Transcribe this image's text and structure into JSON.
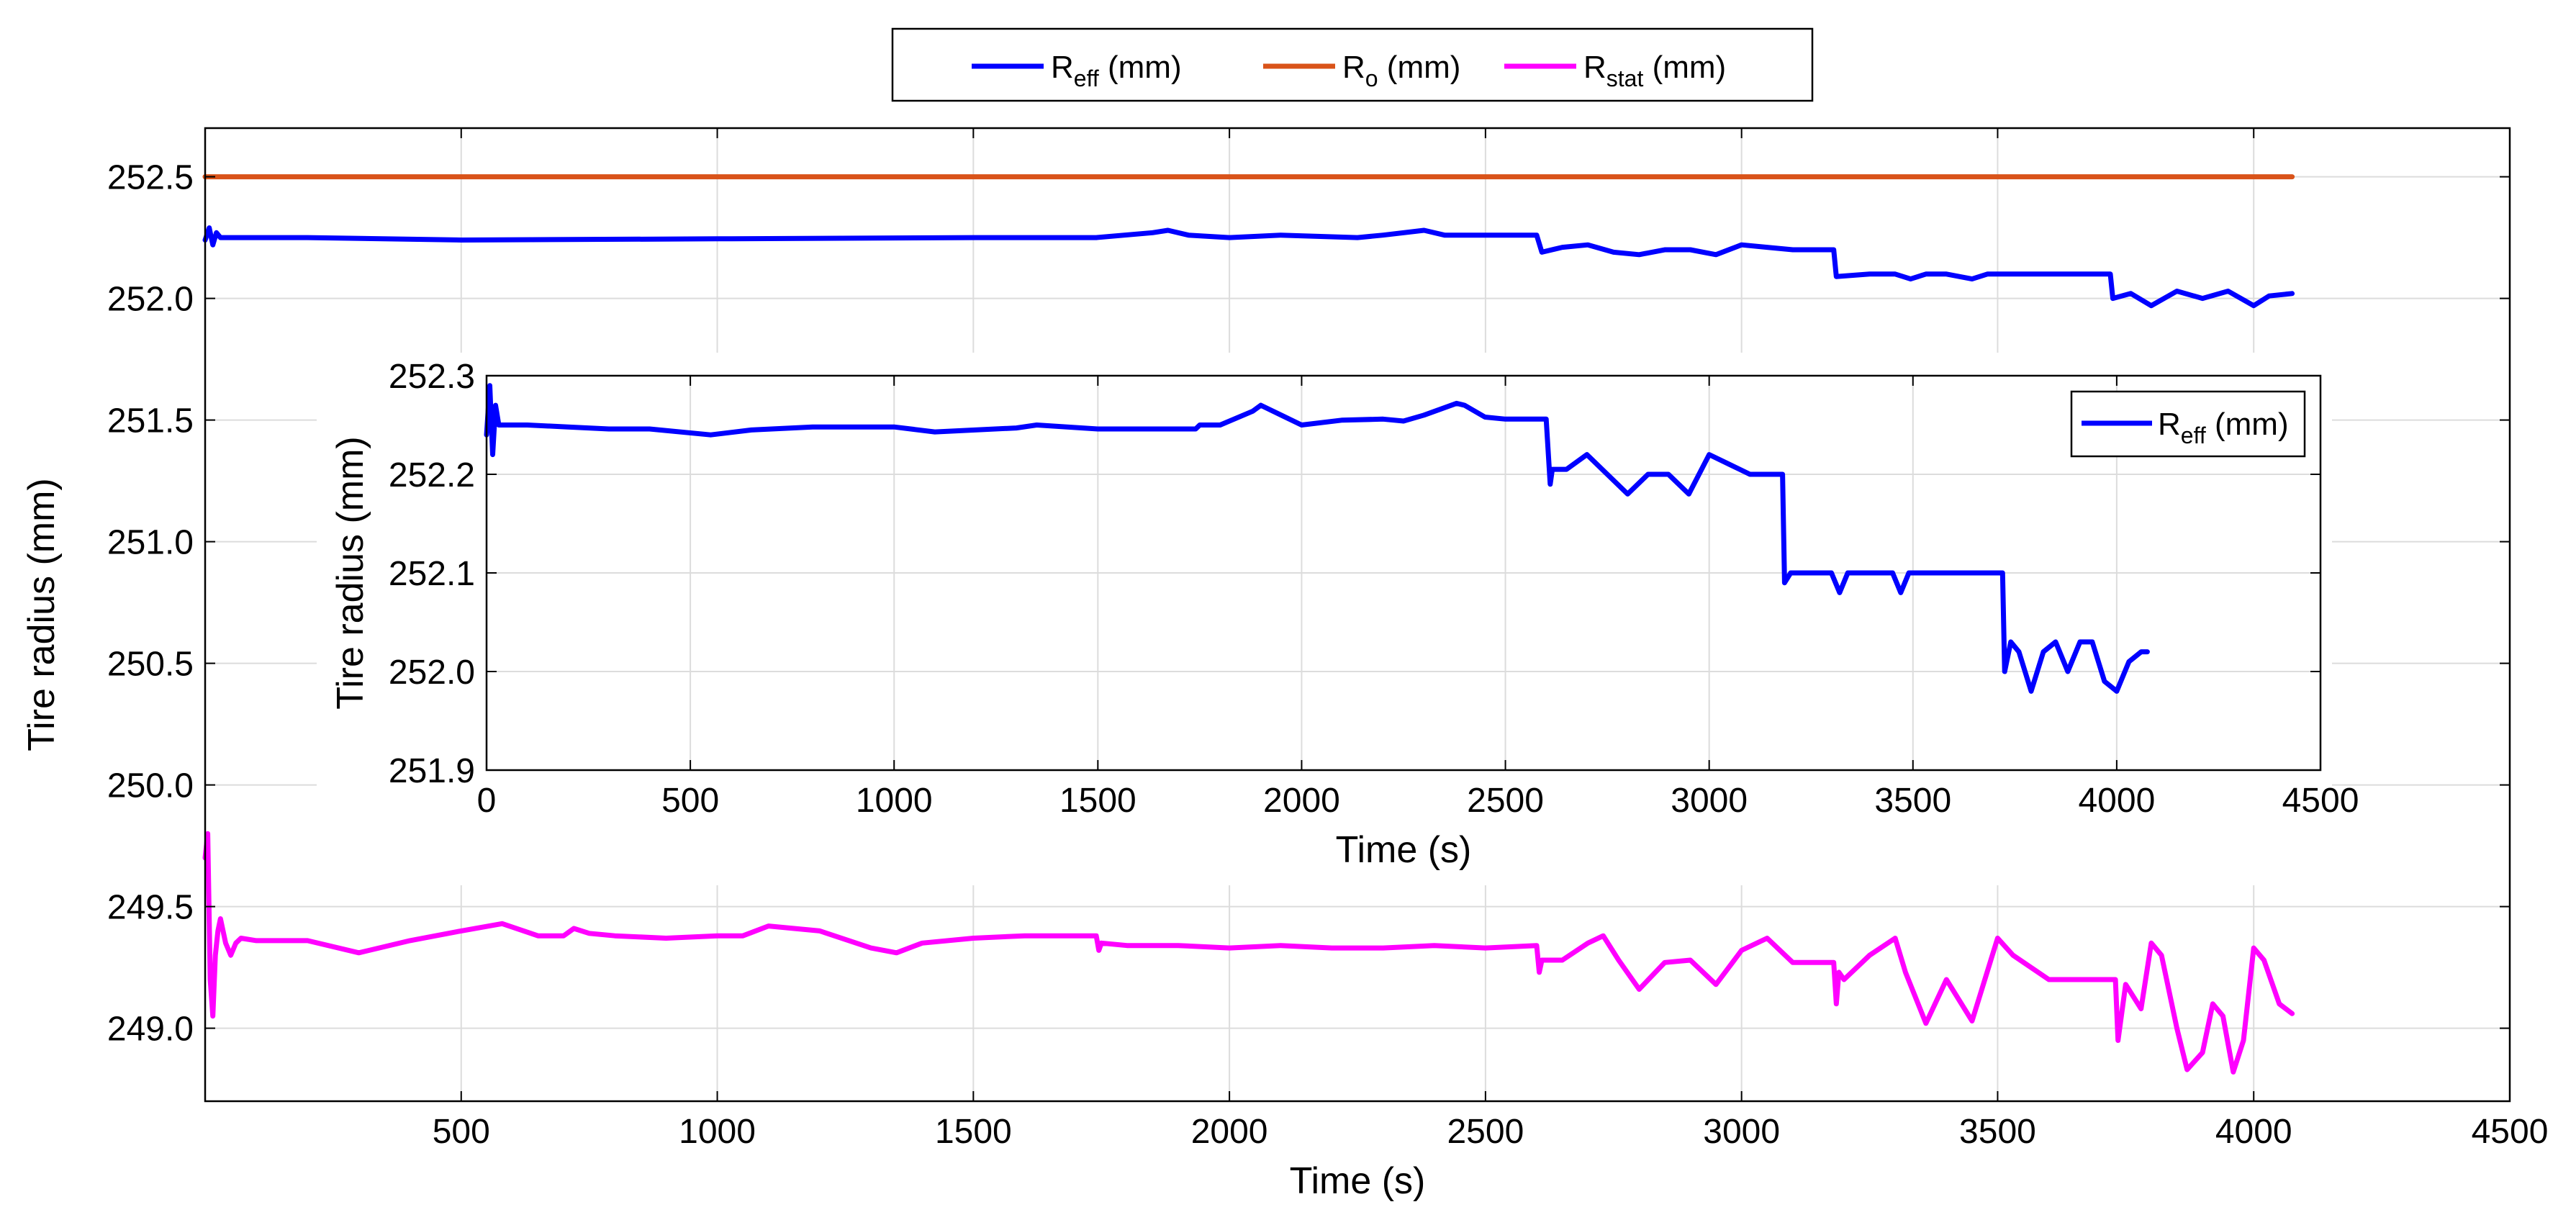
{
  "chart_data": [
    {
      "type": "line",
      "xlabel": "Time (s)",
      "ylabel": "Tire radius (mm)",
      "xlim": [
        0,
        4500
      ],
      "ylim": [
        248.7,
        252.7
      ],
      "xticks": [
        500,
        1000,
        1500,
        2000,
        2500,
        3000,
        3500,
        4000,
        4500
      ],
      "yticks": [
        249.0,
        249.5,
        250.0,
        250.5,
        251.0,
        251.5,
        252.0,
        252.5
      ],
      "ytick_labels": [
        "249.0",
        "249.5",
        "250.0",
        "250.5",
        "251.0",
        "251.5",
        "252.0",
        "252.5"
      ],
      "grid": true,
      "legend": {
        "placement": "top-center-outside",
        "orientation": "horizontal"
      },
      "series": [
        {
          "name": "R_eff (mm)",
          "legend_main": "R",
          "legend_sub": "eff",
          "legend_unit": " (mm)",
          "color": "#0000FF",
          "x": [
            0,
            8,
            15,
            22,
            30,
            40,
            60,
            200,
            500,
            1000,
            1500,
            1740,
            1850,
            1880,
            1920,
            2000,
            2100,
            2250,
            2300,
            2380,
            2420,
            2600,
            2610,
            2650,
            2700,
            2750,
            2800,
            2850,
            2900,
            2950,
            3000,
            3050,
            3100,
            3180,
            3185,
            3250,
            3300,
            3330,
            3360,
            3400,
            3450,
            3480,
            3500,
            3720,
            3725,
            3760,
            3800,
            3850,
            3900,
            3950,
            4000,
            4030,
            4075
          ],
          "y": [
            252.24,
            252.29,
            252.22,
            252.27,
            252.25,
            252.25,
            252.25,
            252.25,
            252.24,
            252.245,
            252.25,
            252.25,
            252.27,
            252.28,
            252.26,
            252.25,
            252.26,
            252.25,
            252.26,
            252.28,
            252.26,
            252.26,
            252.19,
            252.21,
            252.22,
            252.19,
            252.18,
            252.2,
            252.2,
            252.18,
            252.22,
            252.21,
            252.2,
            252.2,
            252.09,
            252.1,
            252.1,
            252.08,
            252.1,
            252.1,
            252.08,
            252.1,
            252.1,
            252.1,
            252.0,
            252.02,
            251.97,
            252.03,
            252.0,
            252.03,
            251.97,
            252.01,
            252.02
          ]
        },
        {
          "name": "R_o (mm)",
          "legend_main": "R",
          "legend_sub": "o",
          "legend_unit": " (mm)",
          "color": "#D95319",
          "x": [
            0,
            4075
          ],
          "y": [
            252.5,
            252.5
          ]
        },
        {
          "name": "R_stat (mm)",
          "legend_main": "R",
          "legend_sub": "stat",
          "legend_unit": " (mm)",
          "color": "#FF00FF",
          "x": [
            0,
            5,
            10,
            15,
            20,
            25,
            30,
            40,
            50,
            60,
            70,
            100,
            200,
            300,
            400,
            500,
            580,
            650,
            700,
            720,
            750,
            800,
            900,
            1000,
            1050,
            1100,
            1200,
            1300,
            1350,
            1400,
            1500,
            1600,
            1700,
            1740,
            1745,
            1750,
            1800,
            1900,
            2000,
            2100,
            2200,
            2300,
            2400,
            2500,
            2600,
            2605,
            2610,
            2650,
            2700,
            2730,
            2760,
            2800,
            2850,
            2900,
            2950,
            3000,
            3050,
            3100,
            3150,
            3180,
            3185,
            3190,
            3200,
            3250,
            3300,
            3320,
            3360,
            3400,
            3450,
            3500,
            3530,
            3600,
            3700,
            3730,
            3735,
            3750,
            3780,
            3800,
            3820,
            3850,
            3870,
            3900,
            3920,
            3940,
            3960,
            3980,
            4000,
            4020,
            4050,
            4075
          ],
          "y": [
            249.7,
            249.8,
            249.2,
            249.05,
            249.3,
            249.4,
            249.45,
            249.35,
            249.3,
            249.35,
            249.37,
            249.36,
            249.36,
            249.31,
            249.36,
            249.4,
            249.43,
            249.38,
            249.38,
            249.41,
            249.39,
            249.38,
            249.37,
            249.38,
            249.38,
            249.42,
            249.4,
            249.33,
            249.31,
            249.35,
            249.37,
            249.38,
            249.38,
            249.38,
            249.32,
            249.35,
            249.34,
            249.34,
            249.33,
            249.34,
            249.33,
            249.33,
            249.34,
            249.33,
            249.34,
            249.23,
            249.28,
            249.28,
            249.35,
            249.38,
            249.28,
            249.16,
            249.27,
            249.28,
            249.18,
            249.32,
            249.37,
            249.27,
            249.27,
            249.27,
            249.1,
            249.23,
            249.2,
            249.3,
            249.37,
            249.23,
            249.02,
            249.2,
            249.03,
            249.37,
            249.3,
            249.2,
            249.2,
            249.2,
            248.95,
            249.18,
            249.08,
            249.35,
            249.3,
            249.0,
            248.83,
            248.9,
            249.1,
            249.05,
            248.82,
            248.95,
            249.33,
            249.28,
            249.1,
            249.06
          ]
        }
      ]
    },
    {
      "type": "line",
      "role": "inset",
      "xlabel": "Time (s)",
      "ylabel": "Tire radius (mm)",
      "xlim": [
        0,
        4500
      ],
      "ylim": [
        251.9,
        252.3
      ],
      "xticks": [
        0,
        500,
        1000,
        1500,
        2000,
        2500,
        3000,
        3500,
        4000,
        4500
      ],
      "yticks": [
        251.9,
        252.0,
        252.1,
        252.2,
        252.3
      ],
      "ytick_labels": [
        "251.9",
        "252.0",
        "252.1",
        "252.2",
        "252.3"
      ],
      "grid": true,
      "legend": {
        "placement": "top-right"
      },
      "series": [
        {
          "name": "R_eff (mm)",
          "legend_main": "R",
          "legend_sub": "eff",
          "legend_unit": " (mm)",
          "color": "#0000FF",
          "x": [
            0,
            8,
            15,
            22,
            30,
            40,
            60,
            100,
            200,
            300,
            400,
            550,
            650,
            800,
            1000,
            1100,
            1300,
            1350,
            1500,
            1740,
            1750,
            1800,
            1880,
            1900,
            1950,
            2000,
            2100,
            2200,
            2250,
            2300,
            2380,
            2400,
            2450,
            2500,
            2600,
            2610,
            2615,
            2650,
            2700,
            2750,
            2800,
            2850,
            2900,
            2950,
            3000,
            3050,
            3100,
            3150,
            3180,
            3185,
            3200,
            3250,
            3300,
            3320,
            3340,
            3360,
            3400,
            3450,
            3470,
            3490,
            3500,
            3600,
            3720,
            3725,
            3740,
            3760,
            3790,
            3820,
            3850,
            3880,
            3910,
            3940,
            3970,
            4000,
            4030,
            4060,
            4075
          ],
          "y": [
            252.24,
            252.29,
            252.22,
            252.27,
            252.25,
            252.25,
            252.25,
            252.25,
            252.248,
            252.246,
            252.246,
            252.24,
            252.245,
            252.248,
            252.248,
            252.243,
            252.247,
            252.25,
            252.246,
            252.246,
            252.25,
            252.25,
            252.264,
            252.27,
            252.26,
            252.25,
            252.255,
            252.256,
            252.254,
            252.26,
            252.272,
            252.27,
            252.258,
            252.256,
            252.256,
            252.19,
            252.205,
            252.205,
            252.22,
            252.2,
            252.18,
            252.2,
            252.2,
            252.18,
            252.22,
            252.21,
            252.2,
            252.2,
            252.2,
            252.09,
            252.1,
            252.1,
            252.1,
            252.08,
            252.1,
            252.1,
            252.1,
            252.1,
            252.08,
            252.1,
            252.1,
            252.1,
            252.1,
            252.0,
            252.03,
            252.02,
            251.98,
            252.02,
            252.03,
            252.0,
            252.03,
            252.03,
            251.99,
            251.98,
            252.01,
            252.02,
            252.02
          ]
        }
      ]
    }
  ]
}
